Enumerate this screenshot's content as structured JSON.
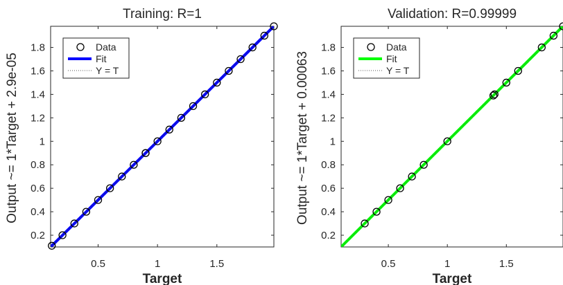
{
  "chart_data": [
    {
      "type": "scatter",
      "title": "Training: R=1",
      "xlabel": "Target",
      "ylabel": "Output ~= 1*Target + 2.9e-05",
      "xlim": [
        0.1,
        1.98
      ],
      "ylim": [
        0.1,
        1.98
      ],
      "xticks": [
        "0.5",
        "1",
        "1.5"
      ],
      "yticks": [
        "0.2",
        "0.4",
        "0.6",
        "0.8",
        "1",
        "1.2",
        "1.4",
        "1.6",
        "1.8"
      ],
      "legend": [
        "Data",
        "Fit",
        "Y = T"
      ],
      "legend_position": "top-left",
      "fit_color": "#0000ff",
      "series": [
        {
          "name": "Data",
          "x": [
            0.11,
            0.2,
            0.3,
            0.4,
            0.5,
            0.6,
            0.7,
            0.8,
            0.9,
            0.9,
            1.0,
            1.1,
            1.2,
            1.3,
            1.4,
            1.5,
            1.6,
            1.7,
            1.8,
            1.9,
            1.98
          ],
          "y": [
            0.11,
            0.2,
            0.3,
            0.4,
            0.5,
            0.6,
            0.7,
            0.8,
            0.9,
            0.9,
            1.0,
            1.1,
            1.2,
            1.3,
            1.4,
            1.5,
            1.6,
            1.7,
            1.8,
            1.9,
            1.98
          ]
        },
        {
          "name": "Fit",
          "slope": 1,
          "intercept": 2.9e-05
        },
        {
          "name": "Y = T",
          "slope": 1,
          "intercept": 0
        }
      ]
    },
    {
      "type": "scatter",
      "title": "Validation: R=0.99999",
      "xlabel": "Target",
      "ylabel": "Output ~= 1*Target + 0.00063",
      "xlim": [
        0.1,
        1.98
      ],
      "ylim": [
        0.1,
        1.98
      ],
      "xticks": [
        "0.5",
        "1",
        "1.5"
      ],
      "yticks": [
        "0.2",
        "0.4",
        "0.6",
        "0.8",
        "1",
        "1.2",
        "1.4",
        "1.6",
        "1.8"
      ],
      "legend": [
        "Data",
        "Fit",
        "Y = T"
      ],
      "legend_position": "top-left",
      "fit_color": "#00ff00",
      "series": [
        {
          "name": "Data",
          "x": [
            0.3,
            0.4,
            0.5,
            0.6,
            0.7,
            0.8,
            1.0,
            1.39,
            1.4,
            1.5,
            1.6,
            1.8,
            1.9,
            1.98
          ],
          "y": [
            0.3,
            0.4,
            0.5,
            0.6,
            0.7,
            0.8,
            1.0,
            1.39,
            1.4,
            1.5,
            1.6,
            1.8,
            1.9,
            1.98
          ]
        },
        {
          "name": "Fit",
          "slope": 1,
          "intercept": 0.00063
        },
        {
          "name": "Y = T",
          "slope": 1,
          "intercept": 0
        }
      ]
    }
  ]
}
